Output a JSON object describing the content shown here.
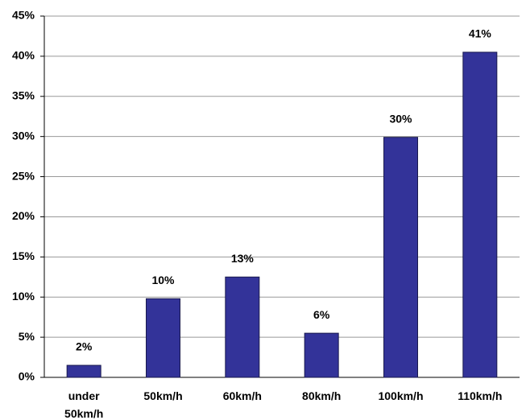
{
  "chart_data": {
    "type": "bar",
    "categories": [
      "under 50km/h",
      "50km/h",
      "60km/h",
      "80km/h",
      "100km/h",
      "110km/h"
    ],
    "values": [
      1.5,
      9.8,
      12.5,
      5.5,
      29.9,
      40.5
    ],
    "value_labels": [
      "2%",
      "10%",
      "13%",
      "6%",
      "30%",
      "41%"
    ],
    "color": "#333399",
    "ylim": [
      0,
      45
    ],
    "yticks": [
      {
        "value": 0,
        "label": "0%"
      },
      {
        "value": 5,
        "label": "5%"
      },
      {
        "value": 10,
        "label": "10%"
      },
      {
        "value": 15,
        "label": "15%"
      },
      {
        "value": 20,
        "label": "20%"
      },
      {
        "value": 25,
        "label": "25%"
      },
      {
        "value": 30,
        "label": "30%"
      },
      {
        "value": 35,
        "label": "35%"
      },
      {
        "value": 40,
        "label": "40%"
      },
      {
        "value": 45,
        "label": "45%"
      }
    ],
    "grid": true
  }
}
